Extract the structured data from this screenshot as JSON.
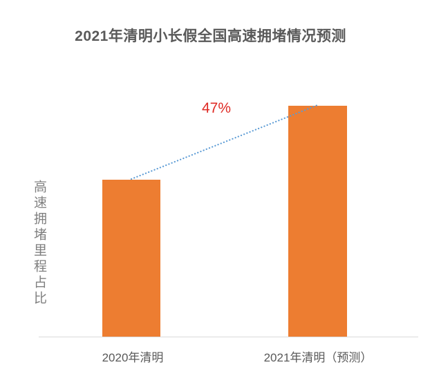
{
  "title": "2021年清明小长假全国高速拥堵情况预测",
  "chart_data": {
    "type": "bar",
    "title": "2021年清明小长假全国高速拥堵情况预测",
    "ylabel": "高速拥堵里程占比",
    "xlabel": "",
    "categories": [
      "2020年清明",
      "2021年清明（预测）"
    ],
    "values": [
      100,
      147
    ],
    "value_scale": "relative (2020=100); no numeric axis shown, 2021 bar estimated from 47% growth annotation",
    "annotation": "47%",
    "annotation_meaning": "predicted growth of congested highway mileage share from 2020 to 2021",
    "legend": "none",
    "grid": false,
    "trend_line": "dotted line connecting tops of the two bars"
  },
  "colors": {
    "bar": "#ED7D31",
    "trend_line": "#5B9BD5",
    "annotation": "#DF2B25",
    "title_text": "#595959",
    "axis_line": "#D9D9D9",
    "category_text": "#595959",
    "ylabel_text": "#7F7F7F",
    "background": "#FFFFFF"
  }
}
